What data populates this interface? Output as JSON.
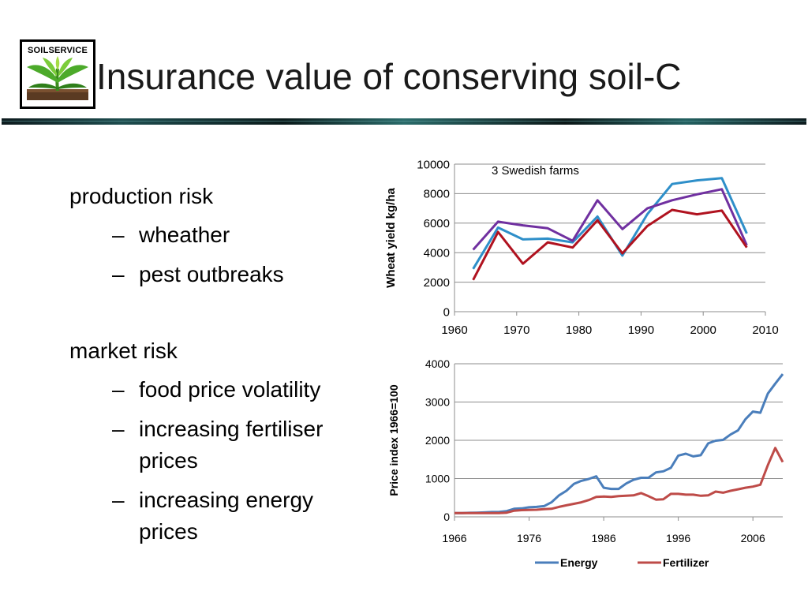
{
  "logo": {
    "text": "SOILSERVICE"
  },
  "title": "Insurance value of conserving soil-C",
  "bullets": [
    {
      "text": "production risk",
      "subs": [
        "wheather",
        "pest outbreaks"
      ]
    },
    {
      "text": "market risk",
      "subs": [
        "food price volatility",
        "increasing fertiliser prices",
        "increasing energy prices"
      ]
    }
  ],
  "sub_lines": {
    "food_price": "food price volatility",
    "fertiliser_1": "increasing fertiliser",
    "fertiliser_2": "prices",
    "energy_1": "increasing energy",
    "energy_2": "prices"
  },
  "colors": {
    "blue": "#2e8fc9",
    "purple": "#7030a0",
    "red": "#b0121f",
    "energy": "#4a7ebb",
    "fertilizer": "#be4b48"
  },
  "chart_data": [
    {
      "type": "line",
      "annotation": "3 Swedish farms",
      "ylabel": "Wheat yield kg/ha",
      "xlabel": "",
      "xlim": [
        1960,
        2010
      ],
      "ylim": [
        0,
        10000
      ],
      "xticks": [
        1960,
        1970,
        1980,
        1990,
        2000,
        2010
      ],
      "yticks": [
        0,
        2000,
        4000,
        6000,
        8000,
        10000
      ],
      "grid": true,
      "series": [
        {
          "color": "#2e8fc9",
          "x": [
            1963,
            1967,
            1971,
            1975,
            1979,
            1983,
            1987,
            1991,
            1995,
            1999,
            2003,
            2007
          ],
          "y": [
            2900,
            5700,
            4900,
            4950,
            4700,
            6450,
            3800,
            6600,
            8650,
            8900,
            9050,
            5300
          ]
        },
        {
          "color": "#7030a0",
          "x": [
            1963,
            1967,
            1971,
            1975,
            1979,
            1983,
            1987,
            1991,
            1995,
            1999,
            2003,
            2007
          ],
          "y": [
            4200,
            6100,
            5850,
            5650,
            4800,
            7550,
            5600,
            7000,
            7550,
            7950,
            8300,
            4500
          ]
        },
        {
          "color": "#b0121f",
          "x": [
            1963,
            1967,
            1971,
            1975,
            1979,
            1983,
            1987,
            1991,
            1995,
            1999,
            2003,
            2007
          ],
          "y": [
            2150,
            5400,
            3250,
            4700,
            4350,
            6200,
            3950,
            5800,
            6900,
            6600,
            6850,
            4350
          ]
        }
      ]
    },
    {
      "type": "line",
      "ylabel": "Price index  1966=100",
      "xlabel": "",
      "xlim": [
        1966,
        2010
      ],
      "ylim": [
        0,
        4000
      ],
      "xticks": [
        1966,
        1976,
        1986,
        1996,
        2006
      ],
      "yticks": [
        0,
        1000,
        2000,
        3000,
        4000
      ],
      "grid": true,
      "legend_position": "bottom",
      "series": [
        {
          "name": "Energy",
          "color": "#4a7ebb",
          "x": [
            1966,
            1967,
            1968,
            1969,
            1970,
            1971,
            1972,
            1973,
            1974,
            1975,
            1976,
            1977,
            1978,
            1979,
            1980,
            1981,
            1982,
            1983,
            1984,
            1985,
            1986,
            1987,
            1988,
            1989,
            1990,
            1991,
            1992,
            1993,
            1994,
            1995,
            1996,
            1997,
            1998,
            1999,
            2000,
            2001,
            2002,
            2003,
            2004,
            2005,
            2006,
            2007,
            2008,
            2009,
            2010
          ],
          "y": [
            100,
            100,
            105,
            110,
            115,
            125,
            130,
            150,
            210,
            220,
            250,
            260,
            280,
            380,
            560,
            680,
            860,
            940,
            990,
            1060,
            760,
            730,
            730,
            870,
            970,
            1020,
            1020,
            1160,
            1190,
            1280,
            1600,
            1650,
            1580,
            1610,
            1920,
            1990,
            2010,
            2150,
            2260,
            2550,
            2750,
            2720,
            3220,
            3480,
            3730
          ]
        },
        {
          "name": "Fertilizer",
          "color": "#be4b48",
          "x": [
            1966,
            1967,
            1968,
            1969,
            1970,
            1971,
            1972,
            1973,
            1974,
            1975,
            1976,
            1977,
            1978,
            1979,
            1980,
            1981,
            1982,
            1983,
            1984,
            1985,
            1986,
            1987,
            1988,
            1989,
            1990,
            1991,
            1992,
            1993,
            1994,
            1995,
            1996,
            1997,
            1998,
            1999,
            2000,
            2001,
            2002,
            2003,
            2004,
            2005,
            2006,
            2007,
            2008,
            2009,
            2010
          ],
          "y": [
            100,
            100,
            100,
            100,
            100,
            100,
            100,
            110,
            160,
            175,
            180,
            185,
            200,
            210,
            260,
            300,
            340,
            380,
            440,
            520,
            530,
            520,
            540,
            550,
            560,
            620,
            540,
            450,
            460,
            600,
            600,
            580,
            580,
            550,
            560,
            660,
            630,
            680,
            720,
            760,
            790,
            840,
            1350,
            1800,
            1430
          ]
        }
      ]
    }
  ]
}
